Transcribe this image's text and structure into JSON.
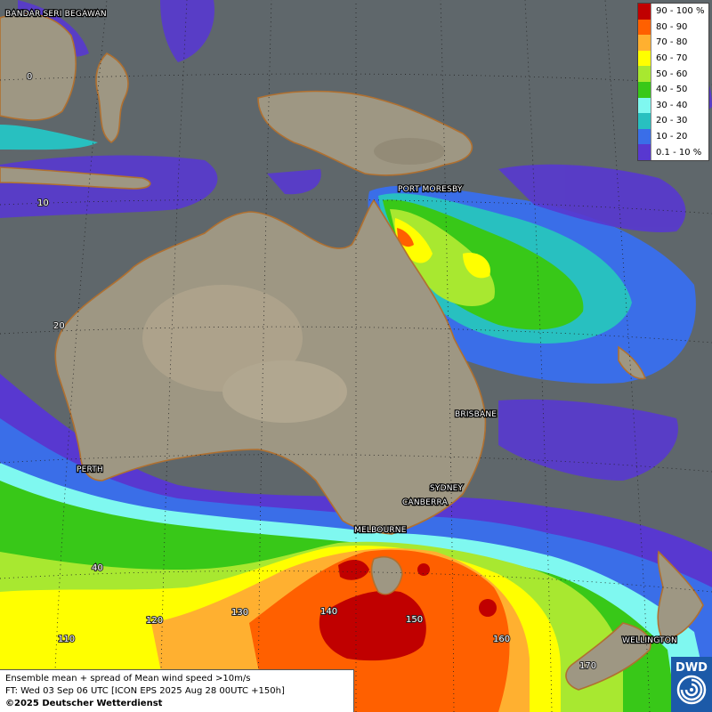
{
  "cities": {
    "bandar": "BANDAR SERI BEGAWAN",
    "port_moresby": "PORT MORESBY",
    "brisbane": "BRISBANE",
    "perth": "PERTH",
    "sydney": "SYDNEY",
    "canberra": "CANBERRA",
    "melbourne": "MELBOURNE",
    "wellington": "WELLINGTON"
  },
  "grid_labels": {
    "lat0": "0",
    "lat10": "10",
    "lat20": "20",
    "lat40": "40",
    "lon110": "110",
    "lon120": "120",
    "lon130": "130",
    "lon140": "140",
    "lon150": "150",
    "lon160": "160",
    "lon170": "170"
  },
  "legend": [
    {
      "label": "90 - 100 %",
      "color": "#c00000"
    },
    {
      "label": "80 - 90",
      "color": "#ff6000"
    },
    {
      "label": "70 - 80",
      "color": "#ffb030"
    },
    {
      "label": "60 - 70",
      "color": "#ffff00"
    },
    {
      "label": "50 - 60",
      "color": "#a8e830"
    },
    {
      "label": "40 - 50",
      "color": "#38c818"
    },
    {
      "label": "30 - 40",
      "color": "#7ff8f0"
    },
    {
      "label": "20 - 30",
      "color": "#28c0c0"
    },
    {
      "label": "10 - 20",
      "color": "#3a6ee8"
    },
    {
      "label": "0.1 - 10 %",
      "color": "#5838d0"
    }
  ],
  "info": {
    "line1": "Ensemble mean + spread of Mean wind speed >10m/s",
    "line2": "FT: Wed 03 Sep 06 UTC [ICON EPS 2025 Aug 28 00UTC +150h]",
    "line3": "©2025 Deutscher Wetterdienst"
  },
  "logo": {
    "text": "DWD"
  }
}
